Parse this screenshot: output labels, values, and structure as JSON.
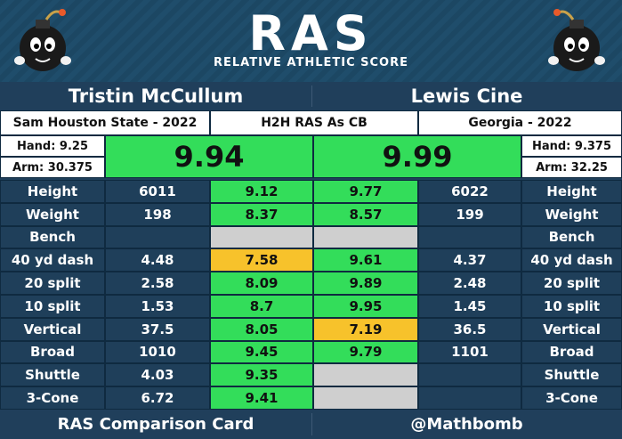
{
  "header": {
    "logo": "RAS",
    "subtitle": "RELATIVE ATHLETIC SCORE"
  },
  "players": {
    "left": {
      "name": "Tristin McCullum",
      "school": "Sam Houston State - 2022",
      "hand": "Hand: 9.25",
      "arm": "Arm: 30.375",
      "ras": "9.94"
    },
    "right": {
      "name": "Lewis Cine",
      "school": "Georgia - 2022",
      "hand": "Hand: 9.375",
      "arm": "Arm: 32.25",
      "ras": "9.99"
    }
  },
  "comparison_label": "H2H RAS As CB",
  "rows": [
    {
      "label": "Height",
      "l_val": "6011",
      "l_score": "9.12",
      "r_score": "9.77",
      "r_val": "6022"
    },
    {
      "label": "Weight",
      "l_val": "198",
      "l_score": "8.37",
      "r_score": "8.57",
      "r_val": "199"
    },
    {
      "label": "Bench",
      "l_val": "",
      "l_score": "",
      "r_score": "",
      "r_val": ""
    },
    {
      "label": "40 yd dash",
      "l_val": "4.48",
      "l_score": "7.58",
      "r_score": "9.61",
      "r_val": "4.37"
    },
    {
      "label": "20 split",
      "l_val": "2.58",
      "l_score": "8.09",
      "r_score": "9.89",
      "r_val": "2.48"
    },
    {
      "label": "10 split",
      "l_val": "1.53",
      "l_score": "8.7",
      "r_score": "9.95",
      "r_val": "1.45"
    },
    {
      "label": "Vertical",
      "l_val": "37.5",
      "l_score": "8.05",
      "r_score": "7.19",
      "r_val": "36.5"
    },
    {
      "label": "Broad",
      "l_val": "1010",
      "l_score": "9.45",
      "r_score": "9.79",
      "r_val": "1101"
    },
    {
      "label": "Shuttle",
      "l_val": "4.03",
      "l_score": "9.35",
      "r_score": "",
      "r_val": ""
    },
    {
      "label": "3-Cone",
      "l_val": "6.72",
      "l_score": "9.41",
      "r_score": "",
      "r_val": ""
    }
  ],
  "row_colors": {
    "l": [
      "green",
      "green",
      "gray",
      "orange",
      "green",
      "green",
      "green",
      "green",
      "green",
      "green"
    ],
    "r": [
      "green",
      "green",
      "gray",
      "green",
      "green",
      "green",
      "orange",
      "green",
      "gray",
      "gray"
    ]
  },
  "colors": {
    "green": "#33dd5a",
    "orange": "#f7c22b",
    "gray": "#cfcfcf",
    "navy": "#1f3f5a"
  },
  "footer": {
    "left": "RAS Comparison Card",
    "right": "@Mathbomb"
  }
}
